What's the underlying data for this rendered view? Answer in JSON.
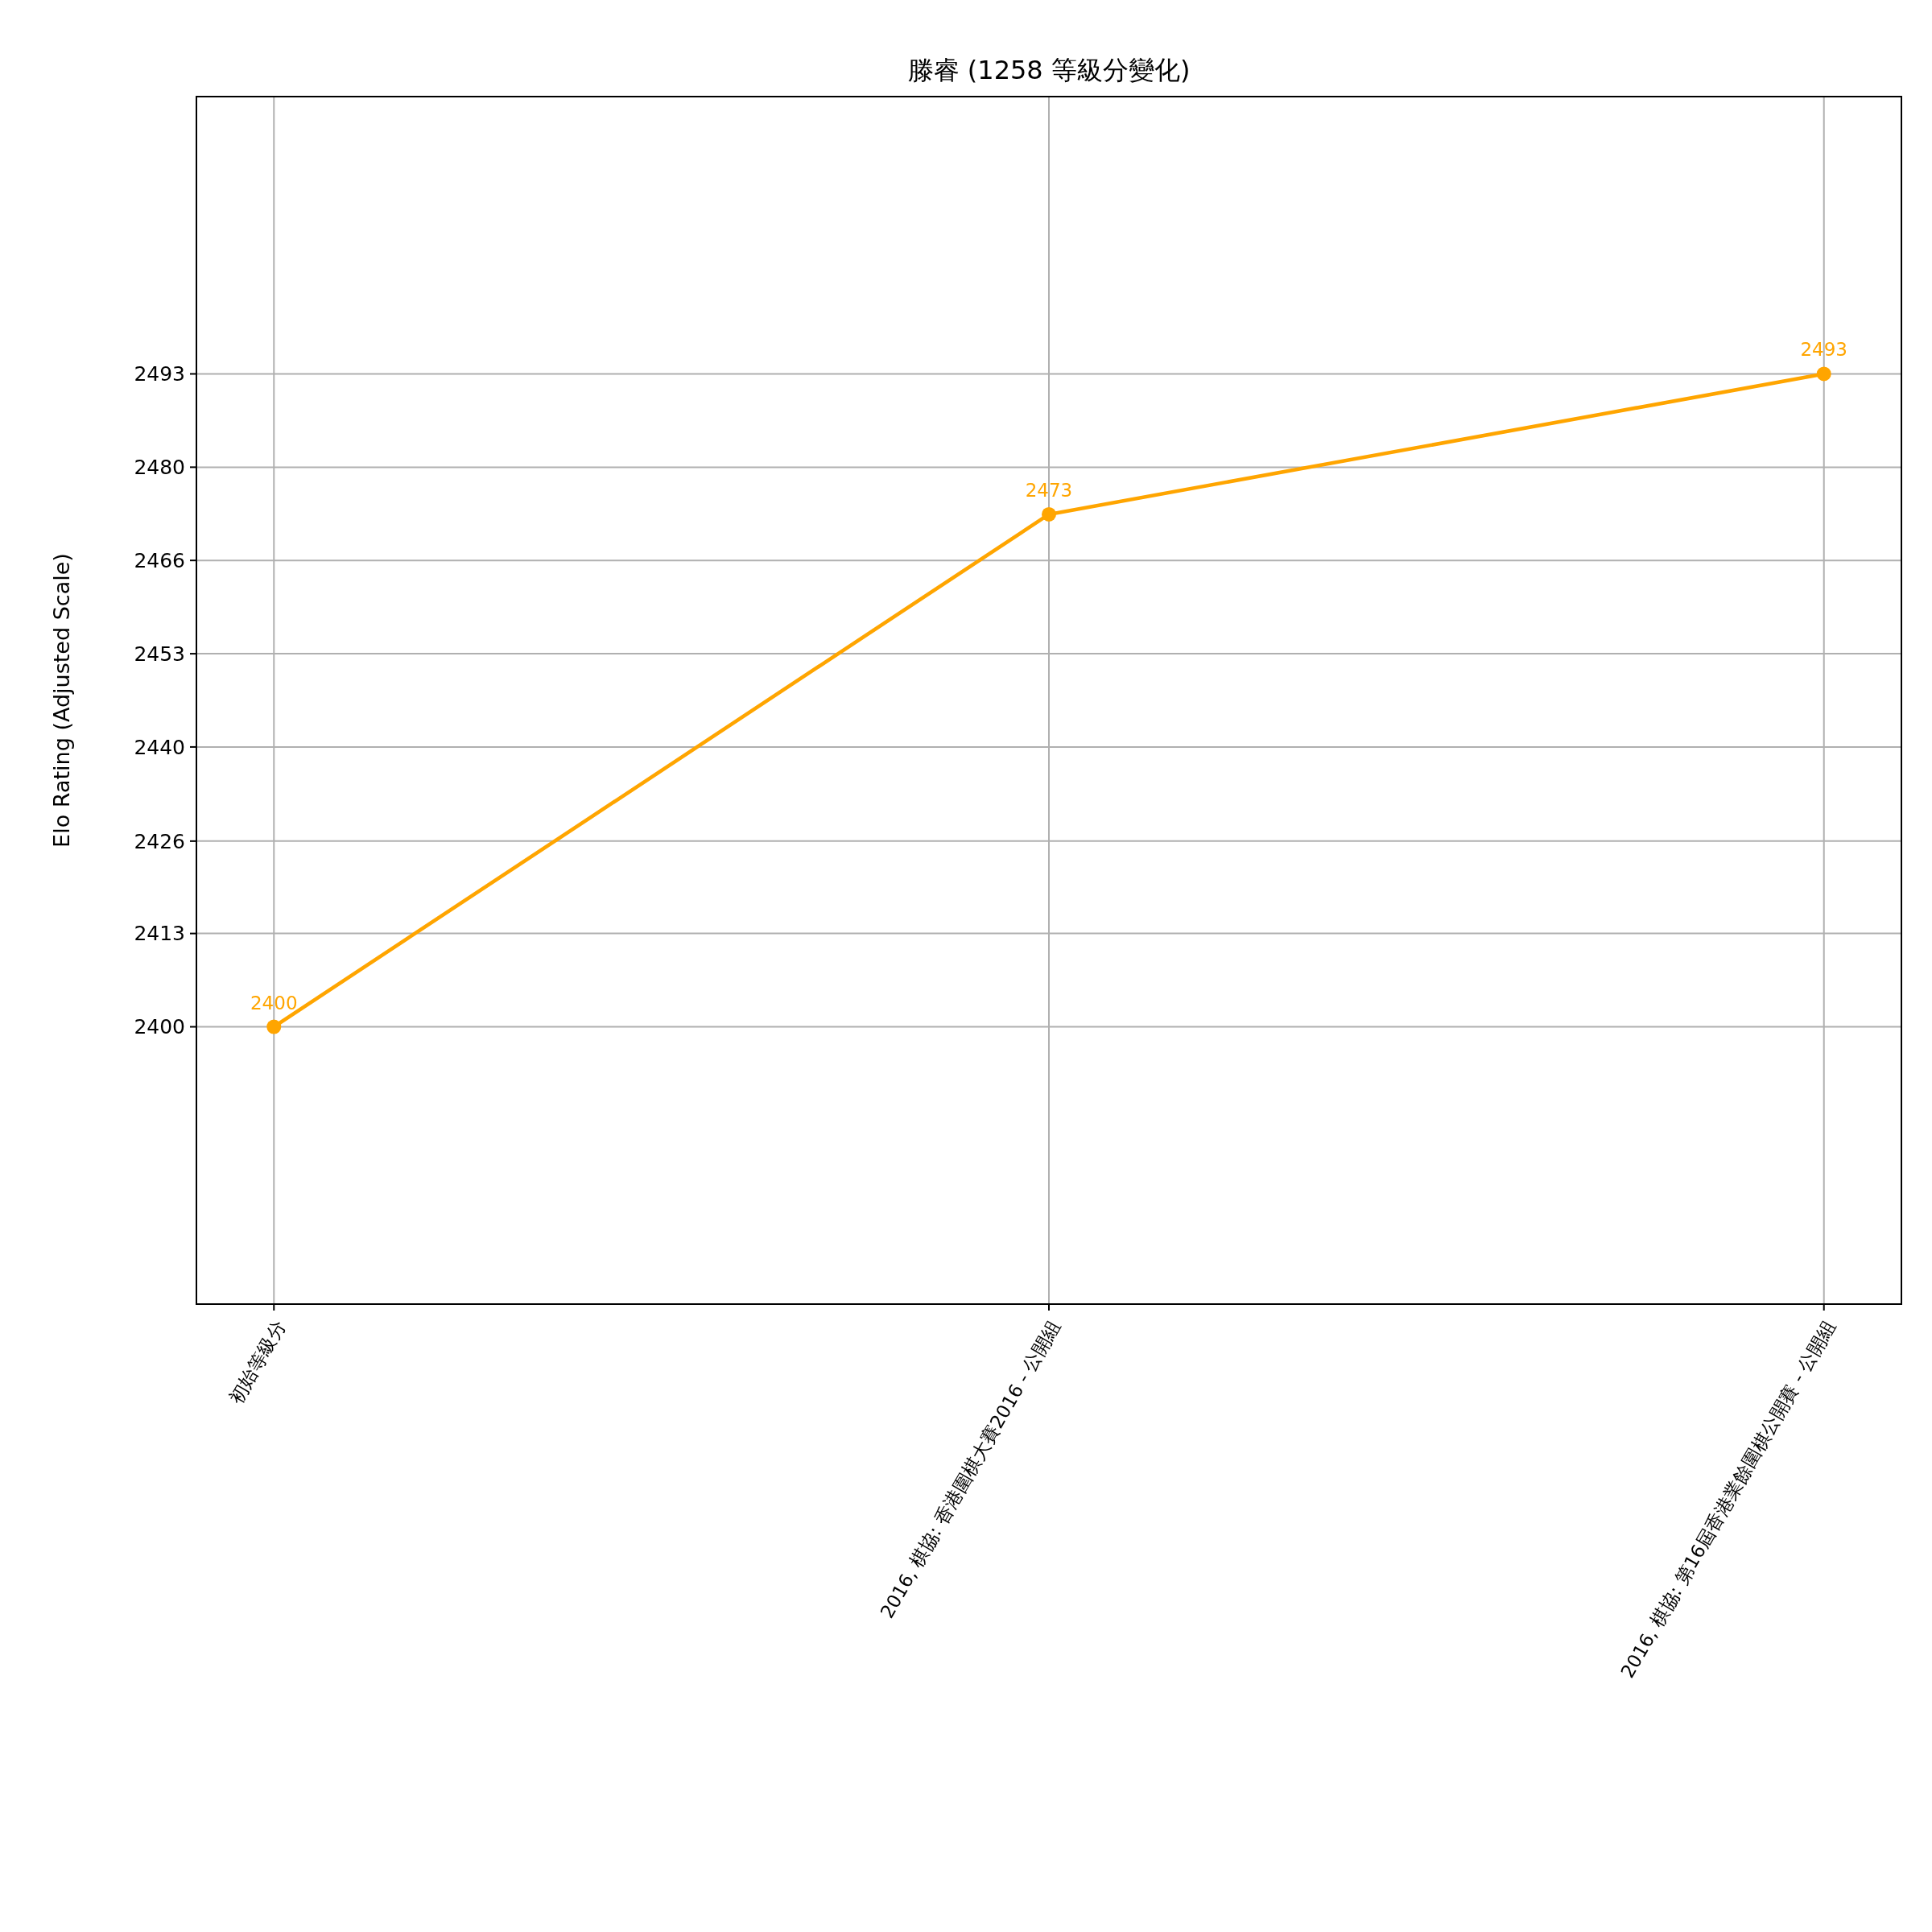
{
  "chart_data": {
    "type": "line",
    "title": "滕睿 (1258 等級分變化)",
    "ylabel": "Elo Rating (Adjusted Scale)",
    "categories": [
      "初始等級分",
      "2016, 棋協: 香港圍棋大賽2016 - 公開組",
      "2016, 棋協: 第16屆香港業餘圍棋公開賽 - 公開組"
    ],
    "series": [
      {
        "color": "#ffa500",
        "values": [
          2400,
          2473,
          2493
        ]
      }
    ],
    "ylim": [
      2360.5,
      2532.5
    ],
    "yticks": [
      2400,
      {
        "value": 2413.29,
        "label": "2413"
      },
      {
        "value": 2426.45,
        "label": "2426"
      },
      {
        "value": 2439.86,
        "label": "2440"
      },
      {
        "value": 2453.14,
        "label": "2453"
      },
      {
        "value": 2466.43,
        "label": "2466"
      },
      {
        "value": 2479.71,
        "label": "2480"
      },
      2493
    ],
    "grid": true,
    "marker": "circle",
    "line_style": "solid",
    "data_labels": true
  }
}
